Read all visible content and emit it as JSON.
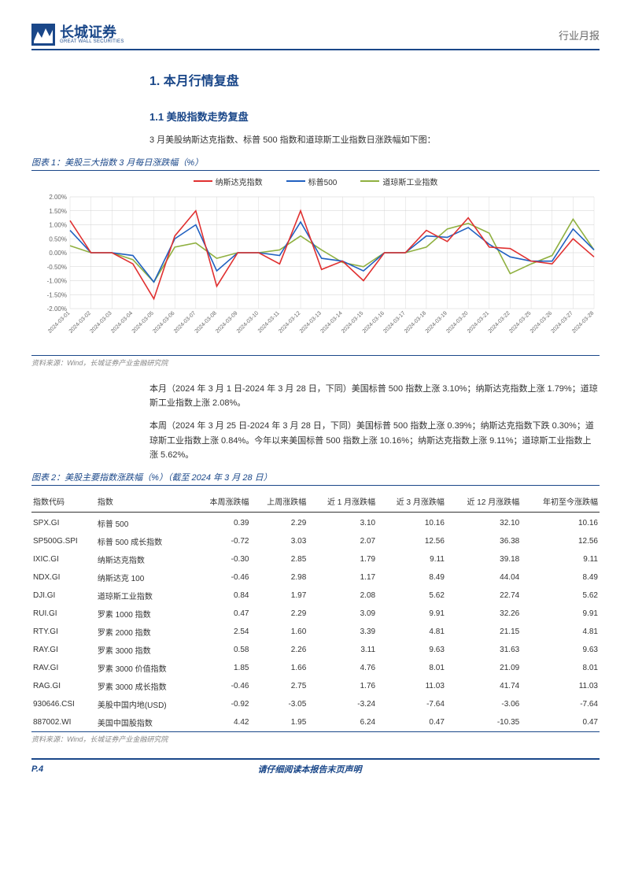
{
  "header": {
    "logo_cn": "长城证券",
    "logo_en": "GREAT WALL SECURITIES",
    "right": "行业月报"
  },
  "section1": {
    "title": "1. 本月行情复盘"
  },
  "section11": {
    "title": "1.1 美股指数走势复盘"
  },
  "para1": "3 月美股纳斯达克指数、标普 500 指数和道琼斯工业指数日涨跌幅如下图：",
  "chart1": {
    "title": "图表 1：美股三大指数 3 月每日涨跌幅（%）",
    "source": "资料来源：Wind，长城证券产业金融研究院",
    "type": "line",
    "legend": [
      {
        "label": "纳斯达克指数",
        "color": "#e03030"
      },
      {
        "label": "标普500",
        "color": "#2060c0"
      },
      {
        "label": "道琼斯工业指数",
        "color": "#8fb040"
      }
    ],
    "x_labels": [
      "2024-03-01",
      "2024-03-02",
      "2024-03-03",
      "2024-03-04",
      "2024-03-05",
      "2024-03-06",
      "2024-03-07",
      "2024-03-08",
      "2024-03-09",
      "2024-03-10",
      "2024-03-11",
      "2024-03-12",
      "2024-03-13",
      "2024-03-14",
      "2024-03-15",
      "2024-03-16",
      "2024-03-17",
      "2024-03-18",
      "2024-03-19",
      "2024-03-20",
      "2024-03-21",
      "2024-03-22",
      "2024-03-25",
      "2024-03-26",
      "2024-03-27",
      "2024-03-28"
    ],
    "ylim": [
      -2.0,
      2.0
    ],
    "ytick_step": 0.5,
    "grid_color": "#d0d0d0",
    "series": {
      "nasdaq": [
        1.15,
        0.0,
        0.0,
        -0.4,
        -1.65,
        0.6,
        1.5,
        -1.2,
        0.0,
        0.0,
        -0.4,
        1.5,
        -0.6,
        -0.3,
        -1.0,
        0.0,
        0.0,
        0.8,
        0.4,
        1.25,
        0.2,
        0.15,
        -0.3,
        -0.4,
        0.5,
        -0.15
      ],
      "sp500": [
        0.8,
        0.0,
        0.0,
        -0.1,
        -1.05,
        0.5,
        1.0,
        -0.65,
        0.0,
        0.0,
        -0.1,
        1.1,
        -0.2,
        -0.3,
        -0.65,
        0.0,
        0.0,
        0.6,
        0.55,
        0.9,
        0.3,
        -0.15,
        -0.3,
        -0.3,
        0.85,
        0.1
      ],
      "dow": [
        0.25,
        0.0,
        0.0,
        -0.25,
        -1.05,
        0.2,
        0.35,
        -0.2,
        0.0,
        0.0,
        0.1,
        0.6,
        0.1,
        -0.35,
        -0.5,
        0.0,
        0.0,
        0.2,
        0.85,
        1.05,
        0.7,
        -0.75,
        -0.4,
        -0.1,
        1.2,
        0.1
      ]
    },
    "label_fontsize": 8
  },
  "para2": "本月（2024 年 3 月 1 日-2024 年 3 月 28 日，下同）美国标普 500 指数上涨 3.10%；纳斯达克指数上涨 1.79%；道琼斯工业指数上涨 2.08%。",
  "para3": "本周（2024 年 3 月 25 日-2024 年 3 月 28 日，下同）美国标普 500 指数上涨 0.39%；纳斯达克指数下跌 0.30%；道琼斯工业指数上涨 0.84%。今年以来美国标普 500 指数上涨 10.16%；纳斯达克指数上涨 9.11%；道琼斯工业指数上涨 5.62%。",
  "table1": {
    "title": "图表 2：美股主要指数涨跌幅（%）（截至 2024 年 3 月 28 日）",
    "source": "资料来源：Wind，长城证券产业金融研究院",
    "columns": [
      "指数代码",
      "指数",
      "本周涨跌幅",
      "上周涨跌幅",
      "近 1 月涨跌幅",
      "近 3 月涨跌幅",
      "近 12 月涨跌幅",
      "年初至今涨跌幅"
    ],
    "rows": [
      [
        "SPX.GI",
        "标普 500",
        "0.39",
        "2.29",
        "3.10",
        "10.16",
        "32.10",
        "10.16"
      ],
      [
        "SP500G.SPI",
        "标普 500 成长指数",
        "-0.72",
        "3.03",
        "2.07",
        "12.56",
        "36.38",
        "12.56"
      ],
      [
        "IXIC.GI",
        "纳斯达克指数",
        "-0.30",
        "2.85",
        "1.79",
        "9.11",
        "39.18",
        "9.11"
      ],
      [
        "NDX.GI",
        "纳斯达克 100",
        "-0.46",
        "2.98",
        "1.17",
        "8.49",
        "44.04",
        "8.49"
      ],
      [
        "DJI.GI",
        "道琼斯工业指数",
        "0.84",
        "1.97",
        "2.08",
        "5.62",
        "22.74",
        "5.62"
      ],
      [
        "RUI.GI",
        "罗素 1000 指数",
        "0.47",
        "2.29",
        "3.09",
        "9.91",
        "32.26",
        "9.91"
      ],
      [
        "RTY.GI",
        "罗素 2000 指数",
        "2.54",
        "1.60",
        "3.39",
        "4.81",
        "21.15",
        "4.81"
      ],
      [
        "RAY.GI",
        "罗素 3000 指数",
        "0.58",
        "2.26",
        "3.11",
        "9.63",
        "31.63",
        "9.63"
      ],
      [
        "RAV.GI",
        "罗素 3000 价值指数",
        "1.85",
        "1.66",
        "4.76",
        "8.01",
        "21.09",
        "8.01"
      ],
      [
        "RAG.GI",
        "罗素 3000 成长指数",
        "-0.46",
        "2.75",
        "1.76",
        "11.03",
        "41.74",
        "11.03"
      ],
      [
        "930646.CSI",
        "美股中国内地(USD)",
        "-0.92",
        "-3.05",
        "-3.24",
        "-7.64",
        "-3.06",
        "-7.64"
      ],
      [
        "887002.WI",
        "美国中国股指数",
        "4.42",
        "1.95",
        "6.24",
        "0.47",
        "-10.35",
        "0.47"
      ]
    ]
  },
  "footer": {
    "left": "P.4",
    "center": "请仔细阅读本报告末页声明"
  }
}
